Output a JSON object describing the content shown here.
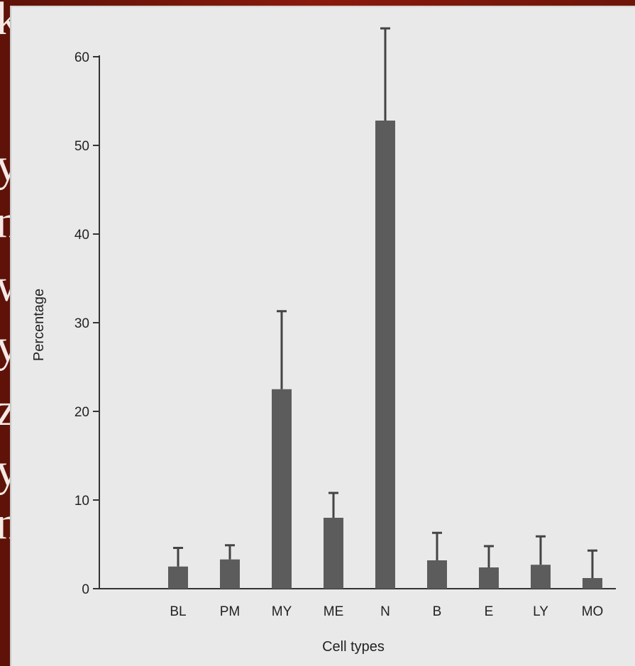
{
  "background": {
    "accent": "#8a1a0c",
    "fragments": [
      "k",
      "y",
      "n",
      "w",
      "y",
      "z",
      "y",
      "n"
    ]
  },
  "chart_data": {
    "type": "bar",
    "categories": [
      "BL",
      "PM",
      "MY",
      "ME",
      "N",
      "B",
      "E",
      "LY",
      "MO"
    ],
    "values": [
      2.5,
      3.3,
      22.5,
      8.0,
      52.8,
      3.2,
      2.4,
      2.7,
      1.2
    ],
    "error_upper": [
      4.6,
      4.9,
      31.3,
      10.8,
      63.2,
      6.3,
      4.8,
      5.9,
      4.3
    ],
    "xlabel": "Cell types",
    "ylabel": "Percentage",
    "ylim": [
      0,
      60
    ],
    "yticks": [
      0,
      10,
      20,
      30,
      40,
      50,
      60
    ],
    "grid": false,
    "bar_color": "#5c5c5c"
  }
}
